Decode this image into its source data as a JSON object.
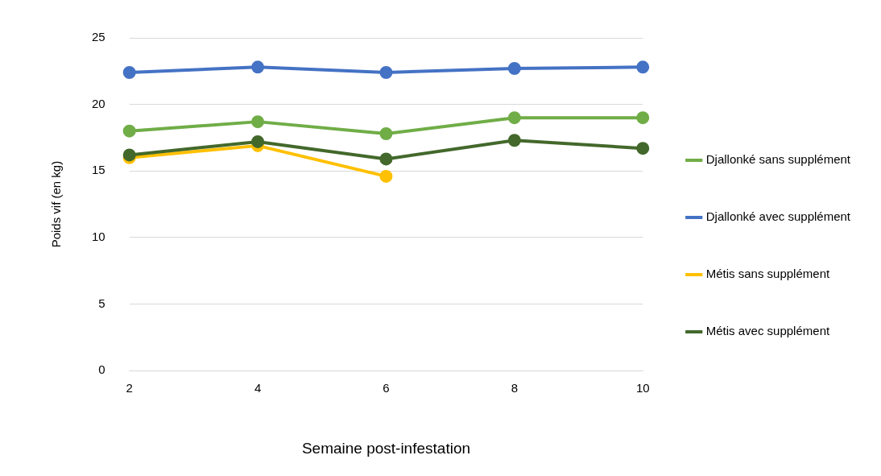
{
  "chart_data": {
    "type": "line",
    "xlabel": "Semaine post-infestation",
    "ylabel": "Poids vif (en kg)",
    "categories": [
      "2",
      "4",
      "6",
      "8",
      "10"
    ],
    "series": [
      {
        "name": "Djallonké sans supplément",
        "color": "#70ad47",
        "values": [
          18.0,
          18.7,
          17.8,
          19.0,
          19.0
        ]
      },
      {
        "name": "Djallonké avec supplément",
        "color": "#4472c4",
        "values": [
          22.4,
          22.8,
          22.4,
          22.7,
          22.8
        ]
      },
      {
        "name": "Métis sans supplément",
        "color": "#ffc000",
        "values": [
          16.0,
          16.9,
          14.6,
          null,
          null
        ]
      },
      {
        "name": "Métis avec supplément",
        "color": "#43682b",
        "values": [
          16.2,
          17.2,
          15.9,
          17.3,
          16.7
        ]
      }
    ],
    "ylim": [
      0,
      25
    ],
    "yticks": [
      0,
      5,
      10,
      15,
      20,
      25
    ],
    "grid": "y",
    "legend": "right",
    "marker": "circle",
    "line_style": "solid"
  }
}
